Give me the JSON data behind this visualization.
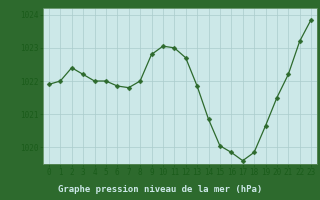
{
  "x": [
    0,
    1,
    2,
    3,
    4,
    5,
    6,
    7,
    8,
    9,
    10,
    11,
    12,
    13,
    14,
    15,
    16,
    17,
    18,
    19,
    20,
    21,
    22,
    23
  ],
  "y": [
    1021.9,
    1022.0,
    1022.4,
    1022.2,
    1022.0,
    1022.0,
    1021.85,
    1021.8,
    1022.0,
    1022.8,
    1023.05,
    1023.0,
    1022.7,
    1021.85,
    1020.85,
    1020.05,
    1019.85,
    1019.6,
    1019.85,
    1020.65,
    1021.5,
    1022.2,
    1023.2,
    1023.85
  ],
  "line_color": "#2d6a2d",
  "marker": "D",
  "marker_size": 2.5,
  "plot_bg_color": "#cce8e8",
  "grid_color": "#aacccc",
  "xlabel_bg_color": "#2d6a2d",
  "ylim": [
    1019.5,
    1024.2
  ],
  "xlim": [
    -0.5,
    23.5
  ],
  "yticks": [
    1020,
    1021,
    1022,
    1023,
    1024
  ],
  "xticks": [
    0,
    1,
    2,
    3,
    4,
    5,
    6,
    7,
    8,
    9,
    10,
    11,
    12,
    13,
    14,
    15,
    16,
    17,
    18,
    19,
    20,
    21,
    22,
    23
  ],
  "xlabel": "Graphe pression niveau de la mer (hPa)",
  "tick_color": "#1a5c1a",
  "xlabel_text_color": "#cce8e8",
  "axis_label_fontsize": 6.5,
  "tick_fontsize": 5.5,
  "border_color": "#5a8a5a",
  "fig_bg_color": "#2d6a2d"
}
